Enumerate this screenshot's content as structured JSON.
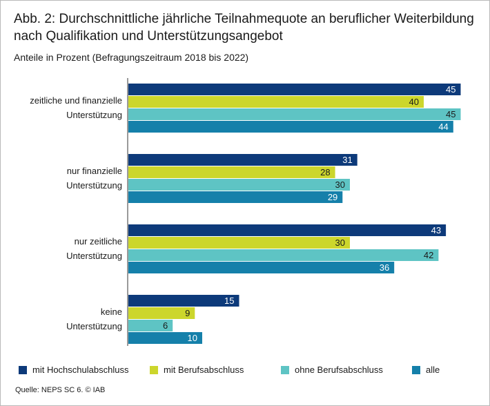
{
  "title": "Abb. 2: Durchschnittliche jährliche Teilnahmequote an beruflicher Weiterbildung nach Qualifikation und Unterstützungsangebot",
  "subtitle": "Anteile in Prozent (Befragungszeitraum 2018 bis 2022)",
  "source": "Quelle: NEPS SC 6.  © IAB",
  "colors": {
    "mit Hochschulabschluss": "#0d3a7a",
    "mit Berufsabschluss": "#ccd62c",
    "ohne Berufsabschluss": "#5ec4c4",
    "alle": "#1580aa"
  },
  "chart_data": {
    "type": "bar",
    "orientation": "horizontal",
    "categories": [
      [
        "zeitliche und finanzielle",
        "Unterstützung"
      ],
      [
        "nur finanzielle",
        "Unterstützung"
      ],
      [
        "nur zeitliche",
        "Unterstützung"
      ],
      [
        "keine",
        "Unterstützung"
      ]
    ],
    "series": [
      {
        "name": "mit Hochschulabschluss",
        "values": [
          45,
          31,
          43,
          15
        ]
      },
      {
        "name": "mit Berufsabschluss",
        "values": [
          40,
          28,
          30,
          9
        ]
      },
      {
        "name": "ohne Berufsabschluss",
        "values": [
          45,
          30,
          42,
          6
        ]
      },
      {
        "name": "alle",
        "values": [
          44,
          29,
          36,
          10
        ]
      }
    ],
    "xlim": [
      0,
      45
    ],
    "legend_position": "bottom",
    "data_labels": true,
    "grid": false
  }
}
